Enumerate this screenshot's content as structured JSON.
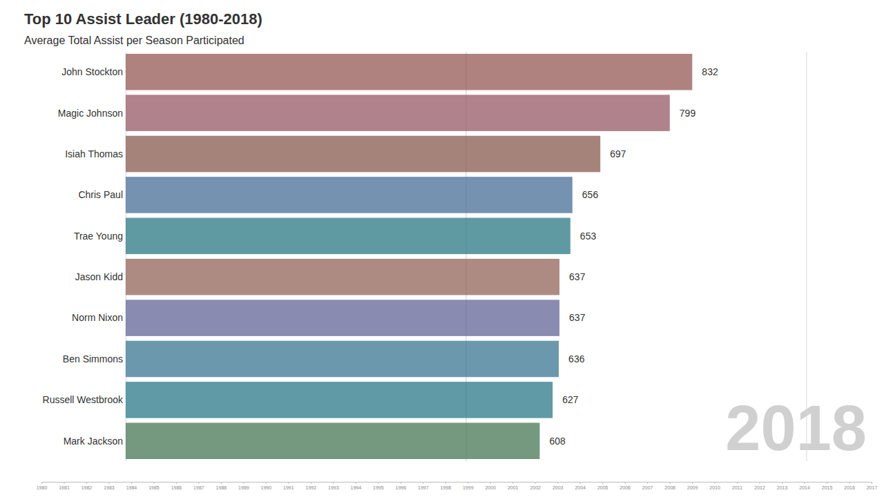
{
  "chart_data": {
    "type": "bar",
    "orientation": "horizontal",
    "title": "Top 10 Assist Leader (1980-2018)",
    "subtitle": "Average Total Assist per Season Participated",
    "categories": [
      "John Stockton",
      "Magic Johnson",
      "Isiah Thomas",
      "Chris Paul",
      "Trae Young",
      "Jason Kidd",
      "Norm Nixon",
      "Ben Simmons",
      "Russell Westbrook",
      "Mark Jackson"
    ],
    "values": [
      832,
      799,
      697,
      656,
      653,
      637,
      637,
      636,
      627,
      608
    ],
    "colors": [
      "#b0827f",
      "#b0828c",
      "#a6837a",
      "#7592b0",
      "#5f9aa3",
      "#ad8a82",
      "#8a8bb0",
      "#6b98ad",
      "#5f9aa6",
      "#74997e"
    ],
    "xlim": [
      0,
      1000
    ],
    "xticks": [
      0,
      500,
      1000
    ],
    "grid": true,
    "tick_labels": false,
    "data_labels": true,
    "annotation": "2018",
    "timeline_ticks": [
      1980,
      1981,
      1982,
      1983,
      1984,
      1985,
      1986,
      1987,
      1988,
      1989,
      1990,
      1991,
      1992,
      1993,
      1994,
      1995,
      1996,
      1997,
      1998,
      1999,
      2000,
      2001,
      2002,
      2003,
      2004,
      2005,
      2006,
      2007,
      2008,
      2009,
      2010,
      2011,
      2012,
      2013,
      2014,
      2015,
      2016,
      2017
    ]
  }
}
